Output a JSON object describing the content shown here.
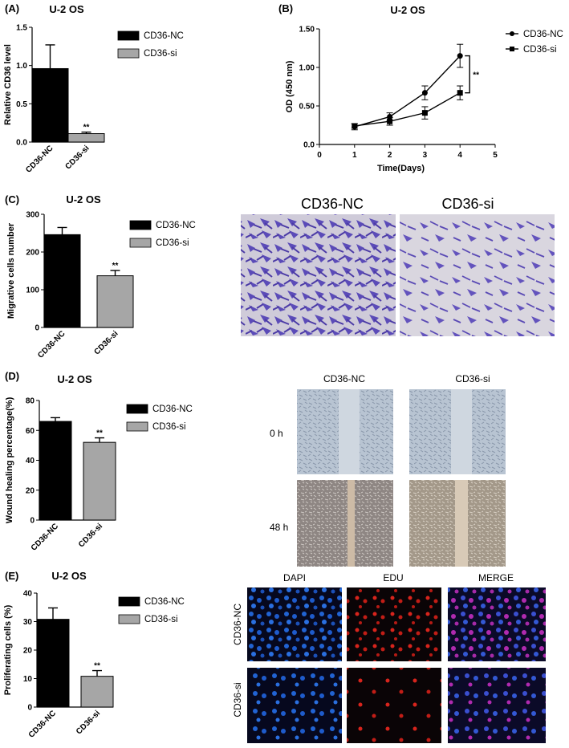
{
  "colors": {
    "nc": "#000000",
    "si": "#a6a6a6",
    "violet": "#5b4bb8",
    "blue": "#1f56c9",
    "red": "#d8241c",
    "magenta": "#b02ab0"
  },
  "panels": {
    "A": {
      "label": "(A)",
      "chart_data": {
        "type": "bar",
        "title": "U-2 OS",
        "ylabel": "Relative CD36 level",
        "categories": [
          "CD36-NC",
          "CD36-si"
        ],
        "values": [
          0.96,
          0.11
        ],
        "errors": [
          0.31,
          0.02
        ],
        "ylim": [
          0,
          1.5
        ],
        "yticks": [
          "0.0",
          "0.5",
          "1.0",
          "1.5"
        ],
        "yticks_values": [
          0,
          0.5,
          1.0,
          1.5
        ],
        "significance": [
          "",
          "**"
        ],
        "legend": [
          "CD36-NC",
          "CD36-si"
        ]
      }
    },
    "B": {
      "label": "(B)",
      "chart_data": {
        "type": "line",
        "title": "U-2 OS",
        "xlabel": "Time(Days)",
        "ylabel": "OD (450 nm)",
        "xlim": [
          0,
          5
        ],
        "ylim": [
          0,
          1.5
        ],
        "xticks": [
          "0",
          "1",
          "2",
          "3",
          "4",
          "5"
        ],
        "xticks_values": [
          0,
          1,
          2,
          3,
          4,
          5
        ],
        "yticks": [
          "0.0",
          "0.50",
          "1.00",
          "1.50"
        ],
        "yticks_values": [
          0,
          0.5,
          1.0,
          1.5
        ],
        "x": [
          1,
          2,
          3,
          4
        ],
        "series": [
          {
            "name": "CD36-NC",
            "values": [
              0.23,
              0.36,
              0.67,
              1.15
            ],
            "errors": [
              0.04,
              0.05,
              0.09,
              0.15
            ],
            "marker": "circle"
          },
          {
            "name": "CD36-si",
            "values": [
              0.24,
              0.3,
              0.41,
              0.67
            ],
            "errors": [
              0.03,
              0.05,
              0.08,
              0.09
            ],
            "marker": "square"
          }
        ],
        "significance": "**"
      }
    },
    "C": {
      "label": "(C)",
      "chart_data": {
        "type": "bar",
        "title": "U-2 OS",
        "ylabel": "Migrative cells number",
        "categories": [
          "CD36-NC",
          "CD36-si"
        ],
        "values": [
          246,
          137
        ],
        "errors": [
          19,
          14
        ],
        "ylim": [
          0,
          300
        ],
        "yticks": [
          "0",
          "100",
          "200",
          "300"
        ],
        "yticks_values": [
          0,
          100,
          200,
          300
        ],
        "significance": [
          "",
          "**"
        ],
        "legend": [
          "CD36-NC",
          "CD36-si"
        ]
      },
      "images": {
        "left_title": "CD36-NC",
        "right_title": "CD36-si"
      }
    },
    "D": {
      "label": "(D)",
      "chart_data": {
        "type": "bar",
        "title": "U-2 OS",
        "ylabel": "Wound healing percentage(%)",
        "categories": [
          "CD36-NC",
          "CD36-si"
        ],
        "values": [
          66,
          52
        ],
        "errors": [
          2.5,
          3
        ],
        "ylim": [
          0,
          80
        ],
        "yticks": [
          "0",
          "20",
          "40",
          "60",
          "80"
        ],
        "yticks_values": [
          0,
          20,
          40,
          60,
          80
        ],
        "significance": [
          "",
          "**"
        ],
        "legend": [
          "CD36-NC",
          "CD36-si"
        ]
      },
      "images": {
        "col1": "CD36-NC",
        "col2": "CD36-si",
        "row1": "0 h",
        "row2": "48 h"
      }
    },
    "E": {
      "label": "(E)",
      "chart_data": {
        "type": "bar",
        "title": "U-2 OS",
        "ylabel": "Proliferating cells (%)",
        "categories": [
          "CD36-NC",
          "CD36-si"
        ],
        "values": [
          30.8,
          10.8
        ],
        "errors": [
          4.0,
          2.0
        ],
        "ylim": [
          0,
          40
        ],
        "yticks": [
          "0",
          "10",
          "20",
          "30",
          "40"
        ],
        "yticks_values": [
          0,
          10,
          20,
          30,
          40
        ],
        "significance": [
          "",
          "**"
        ],
        "legend": [
          "CD36-NC",
          "CD36-si"
        ]
      },
      "images": {
        "col1": "DAPI",
        "col2": "EDU",
        "col3": "MERGE",
        "row1": "CD36-NC",
        "row2": "CD36-si"
      }
    }
  }
}
